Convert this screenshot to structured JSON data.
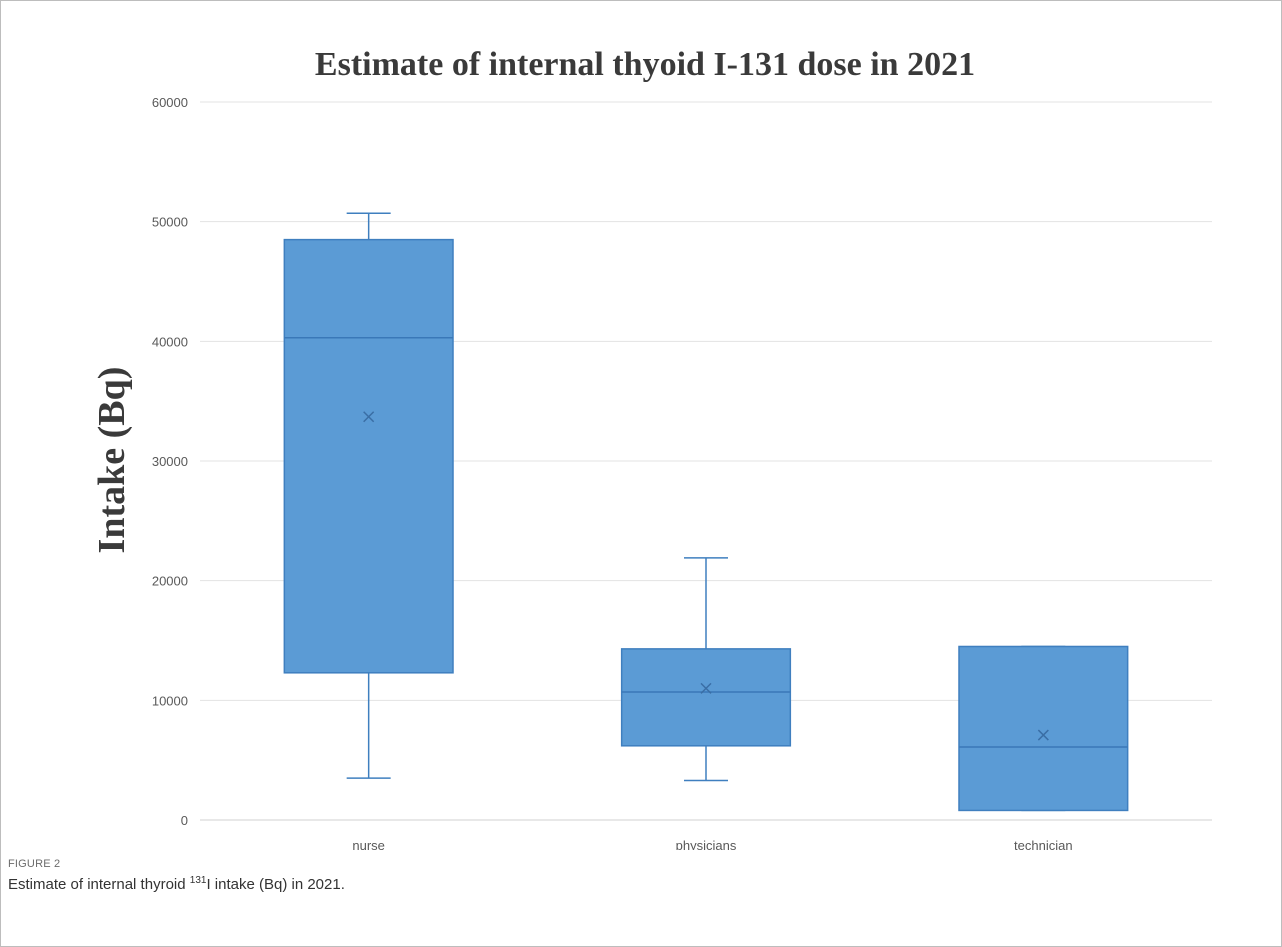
{
  "chart_data": {
    "type": "box",
    "title": "Estimate of internal thyoid I-131 dose in 2021",
    "xlabel": "",
    "ylabel": "Intake (Bq)",
    "ylim": [
      0,
      60000
    ],
    "yticks": [
      0,
      10000,
      20000,
      30000,
      40000,
      50000,
      60000
    ],
    "ytick_labels": [
      "0",
      "10000",
      "20000",
      "30000",
      "40000",
      "50000",
      "60000"
    ],
    "grid": true,
    "legend": "none",
    "color": "#5b9bd5",
    "line_color": "#3f7fbf",
    "categories": [
      "nurse",
      "physicians",
      "technician"
    ],
    "boxes": [
      {
        "category": "nurse",
        "min": 3500,
        "q1": 12300,
        "median": 40300,
        "q3": 48500,
        "max": 50700,
        "mean": 33700
      },
      {
        "category": "physicians",
        "min": 3300,
        "q1": 6200,
        "median": 10700,
        "q3": 14300,
        "max": 21900,
        "mean": 11000
      },
      {
        "category": "technician",
        "min": 800,
        "q1": 800,
        "median": 6100,
        "q3": 14500,
        "max": 14500,
        "mean": 7100
      }
    ]
  },
  "caption": {
    "label": "FIGURE 2",
    "text_before": "Estimate of internal thyroid ",
    "superscript": "131",
    "text_after": "I intake (Bq) in 2021."
  }
}
